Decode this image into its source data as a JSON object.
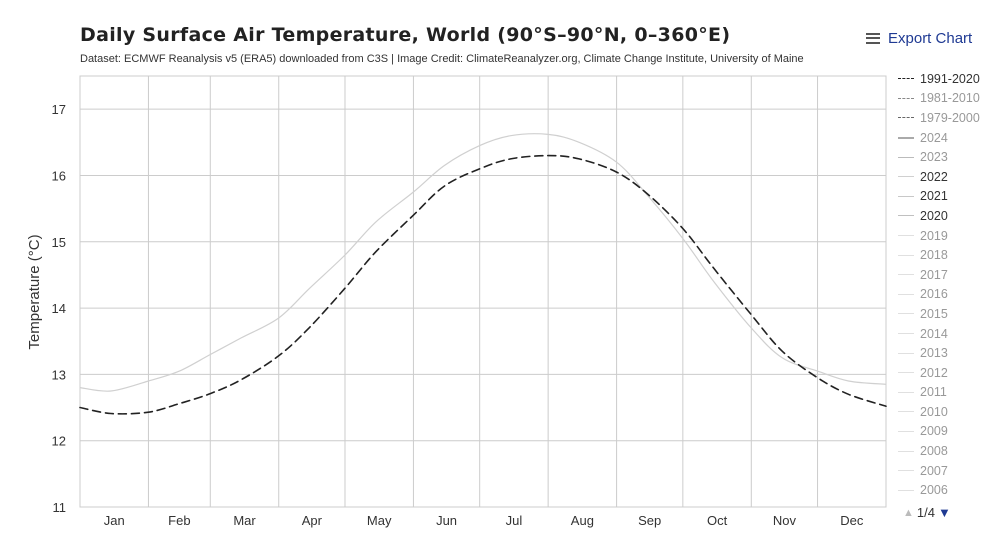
{
  "header": {
    "title": "Daily Surface Air Temperature, World (90°S–90°N, 0–360°E)",
    "subtitle": "Dataset: ECMWF Reanalysis v5 (ERA5) downloaded from C3S | Image Credit: ClimateReanalyzer.org, Climate Change Institute, University of Maine",
    "export_label": "Export Chart",
    "export_icon": "menu-icon"
  },
  "pager": {
    "text": "1/4",
    "up_icon": "triangle-up-icon",
    "down_icon": "triangle-down-icon"
  },
  "chart_data": {
    "type": "line",
    "title": "Daily Surface Air Temperature, World (90°S–90°N, 0–360°E)",
    "xlabel": "",
    "ylabel": "Temperature (°C)",
    "ylim": [
      11,
      17.5
    ],
    "yticks": [
      11,
      12,
      13,
      14,
      15,
      16,
      17
    ],
    "xlim": [
      1,
      366
    ],
    "month_labels": [
      "Jan",
      "Feb",
      "Mar",
      "Apr",
      "May",
      "Jun",
      "Jul",
      "Aug",
      "Sep",
      "Oct",
      "Nov",
      "Dec"
    ],
    "grid": true,
    "legend_position": "right",
    "series": [
      {
        "name": "1991-2020",
        "color": "#222222",
        "dash": "8,5",
        "width": 1.6,
        "x": [
          1,
          15,
          32,
          46,
          60,
          74,
          91,
          105,
          121,
          135,
          152,
          166,
          182,
          196,
          213,
          227,
          244,
          258,
          274,
          288,
          305,
          319,
          335,
          349,
          366
        ],
        "y": [
          12.5,
          12.41,
          12.43,
          12.56,
          12.71,
          12.92,
          13.28,
          13.71,
          14.3,
          14.85,
          15.4,
          15.84,
          16.1,
          16.25,
          16.3,
          16.25,
          16.05,
          15.72,
          15.2,
          14.6,
          13.9,
          13.35,
          12.95,
          12.7,
          12.52
        ]
      },
      {
        "name": "1981-2010",
        "color": "#888888",
        "dash": "7,3,2,3",
        "width": 1.4,
        "x": [],
        "y": []
      },
      {
        "name": "1979-2000",
        "color": "#666666",
        "dash": "6,4",
        "width": 1.4,
        "x": [],
        "y": []
      },
      {
        "name": "2024",
        "color": "#aaaaaa",
        "dash": "",
        "width": 2.6,
        "x": [],
        "y": []
      },
      {
        "name": "2023",
        "color": "#bbbbbb",
        "dash": "",
        "width": 1.2,
        "x": [],
        "y": []
      },
      {
        "name": "2022",
        "color": "#d0d0d0",
        "dash": "",
        "width": 1.2,
        "x": [
          1,
          15,
          32,
          46,
          60,
          74,
          91,
          105,
          121,
          135,
          152,
          166,
          182,
          196,
          213,
          227,
          244,
          258,
          274,
          288,
          305,
          319,
          335,
          349,
          366
        ],
        "y": [
          12.8,
          12.75,
          12.9,
          13.05,
          13.3,
          13.55,
          13.85,
          14.3,
          14.8,
          15.3,
          15.75,
          16.15,
          16.45,
          16.6,
          16.62,
          16.5,
          16.2,
          15.7,
          15.05,
          14.4,
          13.7,
          13.25,
          13.05,
          12.9,
          12.85
        ]
      },
      {
        "name": "2021",
        "color": "#c8c8c8",
        "dash": "",
        "width": 1.2,
        "x": [],
        "y": []
      },
      {
        "name": "2020",
        "color": "#c0c0c0",
        "dash": "",
        "width": 1.2,
        "x": [],
        "y": []
      },
      {
        "name": "2019",
        "color": "#e0e0e0",
        "dash": "",
        "width": 1.0,
        "x": [],
        "y": []
      },
      {
        "name": "2018",
        "color": "#e0e0e0",
        "dash": "",
        "width": 1.0,
        "x": [],
        "y": []
      },
      {
        "name": "2017",
        "color": "#e0e0e0",
        "dash": "",
        "width": 1.0,
        "x": [],
        "y": []
      },
      {
        "name": "2016",
        "color": "#e0e0e0",
        "dash": "",
        "width": 1.0,
        "x": [],
        "y": []
      },
      {
        "name": "2015",
        "color": "#e0e0e0",
        "dash": "",
        "width": 1.0,
        "x": [],
        "y": []
      },
      {
        "name": "2014",
        "color": "#e0e0e0",
        "dash": "",
        "width": 1.0,
        "x": [],
        "y": []
      },
      {
        "name": "2013",
        "color": "#e0e0e0",
        "dash": "",
        "width": 1.0,
        "x": [],
        "y": []
      },
      {
        "name": "2012",
        "color": "#e0e0e0",
        "dash": "",
        "width": 1.0,
        "x": [],
        "y": []
      },
      {
        "name": "2011",
        "color": "#e0e0e0",
        "dash": "",
        "width": 1.0,
        "x": [],
        "y": []
      },
      {
        "name": "2010",
        "color": "#e0e0e0",
        "dash": "",
        "width": 1.0,
        "x": [],
        "y": []
      },
      {
        "name": "2009",
        "color": "#e0e0e0",
        "dash": "",
        "width": 1.0,
        "x": [],
        "y": []
      },
      {
        "name": "2008",
        "color": "#e0e0e0",
        "dash": "",
        "width": 1.0,
        "x": [],
        "y": []
      },
      {
        "name": "2007",
        "color": "#e0e0e0",
        "dash": "",
        "width": 1.0,
        "x": [],
        "y": []
      },
      {
        "name": "2006",
        "color": "#e0e0e0",
        "dash": "",
        "width": 1.0,
        "x": [],
        "y": []
      }
    ],
    "legend_text_colors": [
      "#333333",
      "#999999",
      "#999999",
      "#999999",
      "#999999",
      "#333333",
      "#333333",
      "#333333",
      "#999999",
      "#999999",
      "#999999",
      "#999999",
      "#999999",
      "#999999",
      "#999999",
      "#999999",
      "#999999",
      "#999999",
      "#999999",
      "#999999",
      "#999999",
      "#999999"
    ]
  }
}
